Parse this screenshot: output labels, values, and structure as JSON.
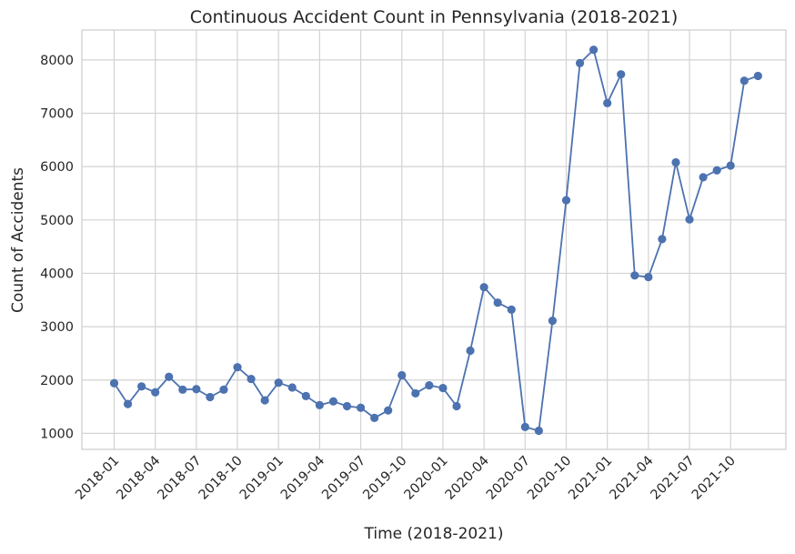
{
  "chart_data": {
    "type": "line",
    "title": "Continuous Accident Count in Pennsylvania (2018-2021)",
    "xlabel": "Time (2018-2021)",
    "ylabel": "Count of Accidents",
    "x_tick_labels": [
      "2018-01",
      "2018-04",
      "2018-07",
      "2018-10",
      "2019-01",
      "2019-04",
      "2019-07",
      "2019-10",
      "2020-01",
      "2020-04",
      "2020-07",
      "2020-10",
      "2021-01",
      "2021-04",
      "2021-07",
      "2021-10"
    ],
    "y_ticks": [
      1000,
      2000,
      3000,
      4000,
      5000,
      6000,
      7000,
      8000
    ],
    "ylim": [
      700,
      8560
    ],
    "grid": true,
    "colors": {
      "line": "#4c72b0",
      "grid": "#d3d3d3",
      "axes": "#cccccc"
    },
    "series": [
      {
        "x": [
          "2018-01",
          "2018-02",
          "2018-03",
          "2018-04",
          "2018-05",
          "2018-06",
          "2018-07",
          "2018-08",
          "2018-09",
          "2018-10",
          "2018-11",
          "2018-12",
          "2019-01",
          "2019-02",
          "2019-03",
          "2019-04",
          "2019-05",
          "2019-06",
          "2019-07",
          "2019-08",
          "2019-09",
          "2019-10",
          "2019-11",
          "2019-12",
          "2020-01",
          "2020-02",
          "2020-03",
          "2020-04",
          "2020-05",
          "2020-06",
          "2020-07",
          "2020-08",
          "2020-09",
          "2020-10",
          "2020-11",
          "2020-12",
          "2021-01",
          "2021-02",
          "2021-03",
          "2021-04",
          "2021-05",
          "2021-06",
          "2021-07",
          "2021-08",
          "2021-09",
          "2021-10",
          "2021-11",
          "2021-12"
        ],
        "values": [
          1940,
          1550,
          1880,
          1770,
          2060,
          1820,
          1830,
          1680,
          1820,
          2240,
          2020,
          1620,
          1950,
          1860,
          1700,
          1530,
          1600,
          1510,
          1480,
          1290,
          1430,
          2090,
          1750,
          1900,
          1850,
          1510,
          2550,
          3740,
          3450,
          3320,
          1120,
          1050,
          3110,
          5370,
          7940,
          8190,
          7190,
          7730,
          3960,
          3930,
          4640,
          6080,
          5010,
          5800,
          5930,
          6020,
          7610,
          7700
        ]
      }
    ]
  }
}
